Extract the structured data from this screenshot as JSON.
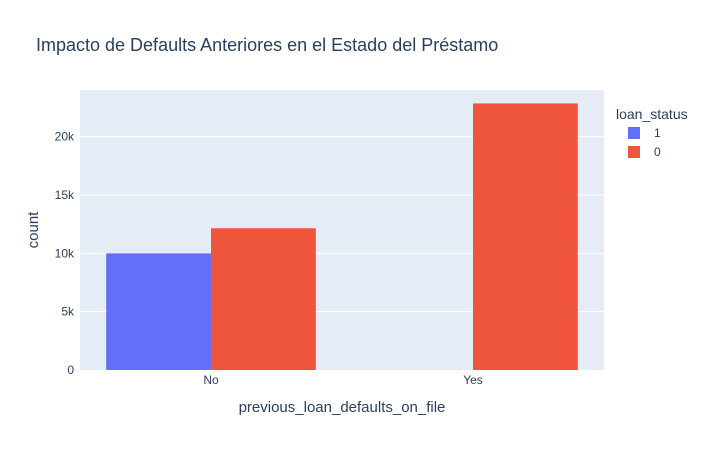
{
  "chart_data": {
    "type": "bar",
    "barmode": "group",
    "title": "Impacto de Defaults Anteriores en el Estado del Préstamo",
    "xlabel": "previous_loan_defaults_on_file",
    "ylabel": "count",
    "categories": [
      "No",
      "Yes"
    ],
    "series": [
      {
        "name": "1",
        "color": "#636efa",
        "values": [
          10000,
          0
        ]
      },
      {
        "name": "0",
        "color": "#ef553b",
        "values": [
          12150,
          22850
        ]
      }
    ],
    "ylim": [
      0,
      24000
    ],
    "yticks": [
      0,
      5000,
      10000,
      15000,
      20000
    ],
    "ytick_labels": [
      "0",
      "5k",
      "10k",
      "15k",
      "20k"
    ],
    "legend": {
      "title": "loan_status",
      "position": "top-right"
    },
    "grid": true,
    "plot_background": "#e5ecf6",
    "gridline_color": "#ffffff"
  }
}
